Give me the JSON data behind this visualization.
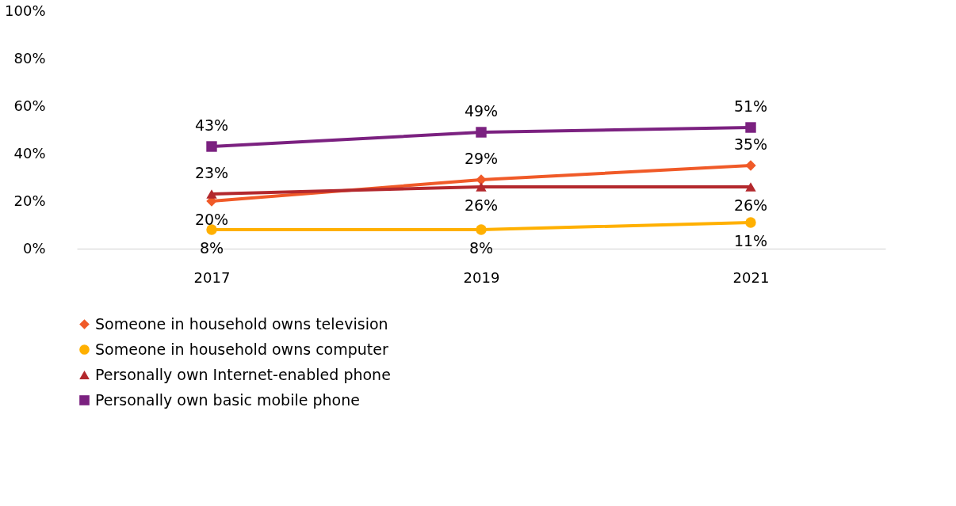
{
  "chart_data": {
    "type": "line",
    "categories": [
      "2017",
      "2019",
      "2021"
    ],
    "series": [
      {
        "name": "Someone in household owns television",
        "color": "#f05a28",
        "marker": "diamond",
        "values": [
          20,
          29,
          35
        ],
        "value_labels": [
          "20%",
          "29%",
          "35%"
        ]
      },
      {
        "name": "Someone in household owns computer",
        "color": "#ffb000",
        "marker": "circle",
        "values": [
          8,
          8,
          11
        ],
        "value_labels": [
          "8%",
          "8%",
          "11%"
        ]
      },
      {
        "name": "Personally own Internet-enabled phone",
        "color": "#b3282d",
        "marker": "triangle",
        "values": [
          23,
          26,
          26
        ],
        "value_labels": [
          "23%",
          "26%",
          "26%"
        ]
      },
      {
        "name": "Personally own basic mobile phone",
        "color": "#7b2180",
        "marker": "square",
        "values": [
          43,
          49,
          51
        ],
        "value_labels": [
          "43%",
          "49%",
          "51%"
        ]
      }
    ],
    "ylim": [
      0,
      100
    ],
    "yticks": [
      {
        "value": 0,
        "label": "0%"
      },
      {
        "value": 20,
        "label": "20%"
      },
      {
        "value": 40,
        "label": "40%"
      },
      {
        "value": 60,
        "label": "60%"
      },
      {
        "value": 80,
        "label": "80%"
      },
      {
        "value": 100,
        "label": "100%"
      }
    ],
    "grid": false,
    "legend": "bottom",
    "line_style": "solid"
  }
}
